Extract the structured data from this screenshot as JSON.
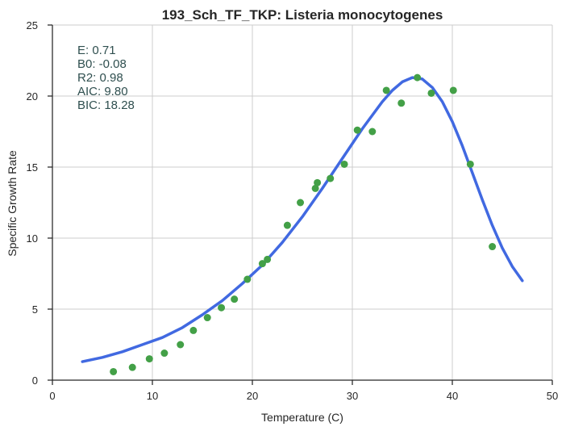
{
  "chart_data": {
    "type": "scatter",
    "title": "193_Sch_TF_TKP: Listeria monocytogenes",
    "xlabel": "Temperature (C)",
    "ylabel": "Specific Growth Rate",
    "xlim": [
      0,
      50
    ],
    "ylim": [
      0,
      25
    ],
    "xticks": [
      0,
      10,
      20,
      30,
      40,
      50
    ],
    "yticks": [
      0,
      5,
      10,
      15,
      20,
      25
    ],
    "x_tick_labels": [
      "0",
      "10",
      "20",
      "30",
      "40",
      "50"
    ],
    "y_tick_labels": [
      "0",
      "5",
      "10",
      "15",
      "20",
      "25"
    ],
    "grid": true,
    "annotation": [
      "E:  0.71",
      "B0:  -0.08",
      "R2:  0.98",
      "AIC: 9.80",
      "BIC: 18.28"
    ],
    "colors": {
      "points": "#43a047",
      "curve": "#4169e1",
      "annotation": "#2f4f4f"
    },
    "series": [
      {
        "type": "scatter",
        "x": [
          6.1,
          8.0,
          9.7,
          11.2,
          12.8,
          14.1,
          15.5,
          16.9,
          18.2,
          19.5,
          21.0,
          21.5,
          23.5,
          24.8,
          26.3,
          26.5,
          27.8,
          29.2,
          30.5,
          32.0,
          33.4,
          34.9,
          36.5,
          37.9,
          40.1,
          41.8,
          44.0
        ],
        "y": [
          0.6,
          0.9,
          1.5,
          1.9,
          2.5,
          3.5,
          4.4,
          5.1,
          5.7,
          7.1,
          8.2,
          8.5,
          10.9,
          12.5,
          13.5,
          13.9,
          14.2,
          15.2,
          17.6,
          17.5,
          20.4,
          19.5,
          21.3,
          20.2,
          20.4,
          15.2,
          9.4
        ]
      },
      {
        "type": "line",
        "x": [
          3,
          5,
          7,
          9,
          11,
          13,
          15,
          17,
          19,
          21,
          23,
          25,
          27,
          29,
          31,
          33,
          34,
          35,
          36,
          37,
          38,
          39,
          40,
          41,
          42,
          43,
          44,
          45,
          46,
          47
        ],
        "y": [
          1.3,
          1.6,
          2.0,
          2.5,
          3.0,
          3.7,
          4.6,
          5.6,
          6.8,
          8.1,
          9.7,
          11.5,
          13.5,
          15.6,
          17.7,
          19.6,
          20.4,
          21.0,
          21.3,
          21.2,
          20.6,
          19.6,
          18.2,
          16.5,
          14.6,
          12.7,
          10.9,
          9.3,
          8.0,
          7.0
        ]
      }
    ]
  }
}
